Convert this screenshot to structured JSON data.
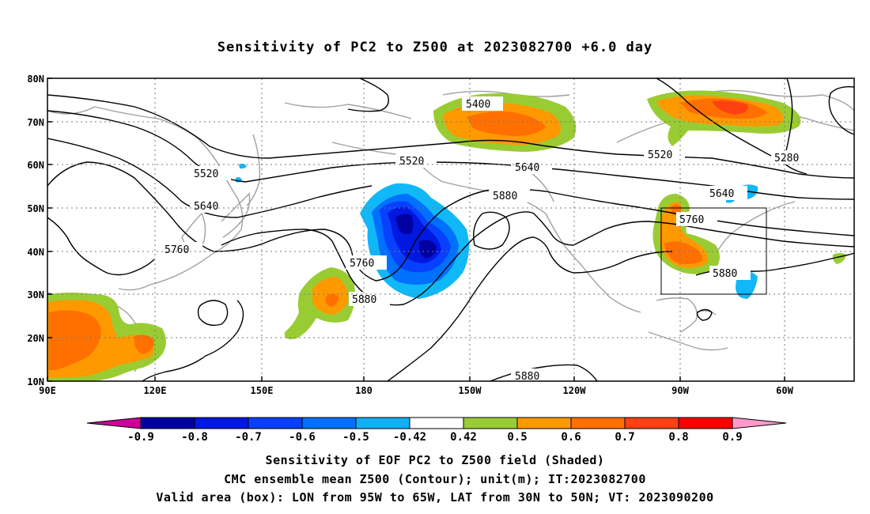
{
  "title": "Sensitivity of PC2 to Z500 at 2023082700 +6.0 day",
  "axes": {
    "lat_labels": [
      "80N",
      "70N",
      "60N",
      "50N",
      "40N",
      "30N",
      "20N",
      "10N"
    ],
    "lon_labels": [
      "90E",
      "120E",
      "150E",
      "180",
      "150W",
      "120W",
      "90W",
      "60W"
    ]
  },
  "contour_labels": [
    "5400",
    "5280",
    "5520",
    "5520",
    "5520",
    "5640",
    "5640",
    "5640",
    "5880",
    "5760",
    "5760",
    "5760",
    "5880",
    "5880",
    "5880"
  ],
  "colorbar": {
    "ticks": [
      "-0.9",
      "-0.8",
      "-0.7",
      "-0.6",
      "-0.5",
      "-0.42",
      "0.42",
      "0.5",
      "0.6",
      "0.7",
      "0.8",
      "0.9"
    ],
    "colors": [
      "#0000a0",
      "#0018e0",
      "#0840ff",
      "#0070ff",
      "#10b0f8",
      "#ffffff",
      "#99cc33",
      "#ff9900",
      "#ff7000",
      "#ff4010",
      "#ff0000"
    ],
    "low_extension_color": "#cc0099",
    "high_extension_color": "#ff99cc"
  },
  "valid_area_box": {
    "lon_range": "95W to 65W",
    "lat_range": "30N to 50N"
  },
  "captions": {
    "line1": "Sensitivity of EOF PC2 to Z500 field (Shaded)",
    "line2": "CMC ensemble mean Z500 (Contour); unit(m); IT:2023082700",
    "line3": "Valid area (box): LON from 95W to 65W, LAT from 30N to 50N; VT: 2023090200"
  }
}
